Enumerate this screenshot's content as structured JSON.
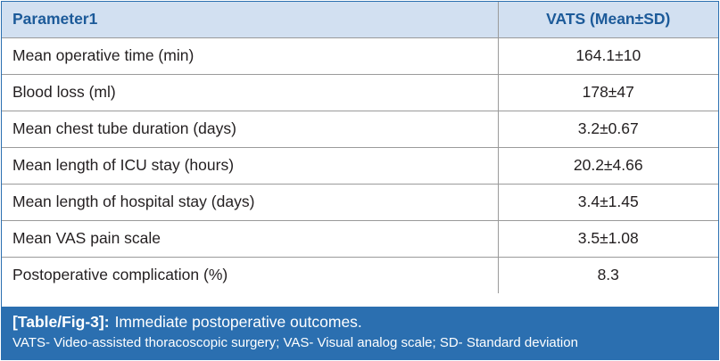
{
  "table": {
    "headers": [
      "Parameter1",
      "VATS (Mean±SD)"
    ],
    "rows": [
      {
        "parameter": "Mean operative time (min)",
        "value": "164.1±10"
      },
      {
        "parameter": "Blood loss (ml)",
        "value": "178±47"
      },
      {
        "parameter": "Mean chest tube duration (days)",
        "value": "3.2±0.67"
      },
      {
        "parameter": "Mean length of ICU stay (hours)",
        "value": "20.2±4.66"
      },
      {
        "parameter": "Mean length of hospital stay (days)",
        "value": "3.4±1.45"
      },
      {
        "parameter": "Mean VAS pain scale",
        "value": "3.5±1.08"
      },
      {
        "parameter": "Postoperative complication (%)",
        "value": "8.3"
      }
    ]
  },
  "caption": {
    "label": "[Table/Fig-3]:",
    "title": "Immediate postoperative outcomes.",
    "footnote": "VATS- Video-assisted thoracoscopic surgery; VAS- Visual analog scale; SD- Standard deviation"
  },
  "colors": {
    "header_bg": "#d2e0f1",
    "header_text": "#1c5a99",
    "caption_bg": "#2b6fb0",
    "border": "#9a9a9a"
  }
}
